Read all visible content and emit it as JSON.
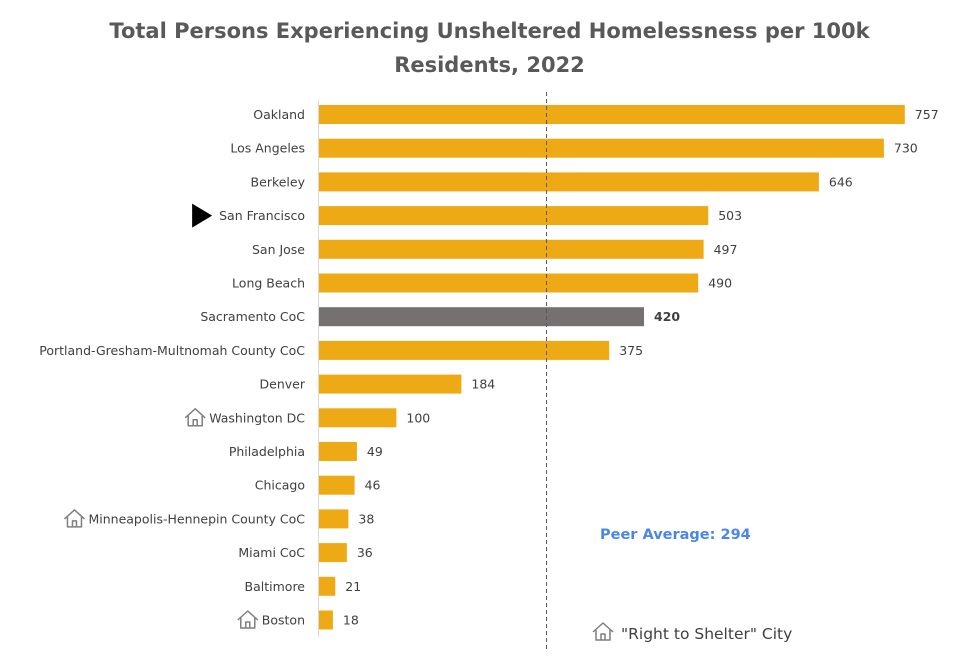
{
  "chart_data": {
    "type": "bar",
    "orientation": "horizontal",
    "title_lines": [
      "Total Persons Experiencing Unsheltered Homelessness per 100k",
      "Residents, 2022"
    ],
    "categories": [
      "Oakland",
      "Los Angeles",
      "Berkeley",
      "San Francisco",
      "San Jose",
      "Long Beach",
      "Sacramento CoC",
      "Portland-Gresham-Multnomah County CoC",
      "Denver",
      "Washington DC",
      "Philadelphia",
      "Chicago",
      "Minneapolis-Hennepin County CoC",
      "Miami  CoC",
      "Baltimore",
      "Boston"
    ],
    "values": [
      757,
      730,
      646,
      503,
      497,
      490,
      420,
      375,
      184,
      100,
      49,
      46,
      38,
      36,
      21,
      18
    ],
    "highlight": "Sacramento CoC",
    "marked": "San Francisco",
    "right_to_shelter": [
      "Washington DC",
      "Minneapolis-Hennepin County CoC",
      "Boston"
    ],
    "reference_line": {
      "value": 294,
      "label": "Peer Average: 294"
    },
    "legend": "\"Right to Shelter\" City",
    "xlim": [
      0,
      765
    ],
    "colors": {
      "bar": "#edaa15",
      "highlight": "#757171",
      "reference": "#4a86e8"
    },
    "grid": false
  }
}
